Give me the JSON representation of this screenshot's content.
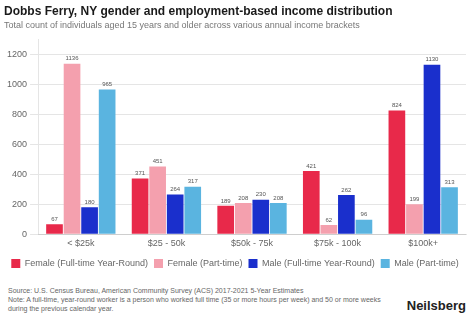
{
  "chart_data": {
    "type": "bar",
    "title": "Dobbs Ferry, NY gender and employment-based income distribution",
    "subtitle": "Total count of individuals aged 15 years and older across various annual income brackets",
    "categories": [
      "< $25k",
      "$25 - 50k",
      "$50k - 75k",
      "$75k - 100k",
      "$100k+"
    ],
    "series": [
      {
        "name": "Female (Full-time Year-Round)",
        "color": "#e8294a",
        "values": [
          67,
          371,
          189,
          421,
          824
        ]
      },
      {
        "name": "Female (Part-time)",
        "color": "#f4a0ae",
        "values": [
          1136,
          451,
          208,
          62,
          199
        ]
      },
      {
        "name": "Male (Full-time Year-Round)",
        "color": "#1a2fcc",
        "values": [
          180,
          264,
          230,
          262,
          1130
        ]
      },
      {
        "name": "Male (Part-time)",
        "color": "#5ab4e0",
        "values": [
          965,
          317,
          208,
          96,
          313
        ]
      }
    ],
    "ylim": [
      0,
      1300
    ],
    "yticks": [
      0,
      200,
      400,
      600,
      800,
      1000,
      1200
    ],
    "grid": true,
    "legend": "bottom",
    "data_labels": true,
    "annotations": [
      "Source: U.S. Census Bureau, American Community Survey (ACS) 2017-2021 5-Year Estimates",
      "Note: A full-time, year-round worker is a person who worked full time (35 or more hours per week) and 50 or more weeks during the previous calendar year.",
      "Neilsberg"
    ]
  }
}
